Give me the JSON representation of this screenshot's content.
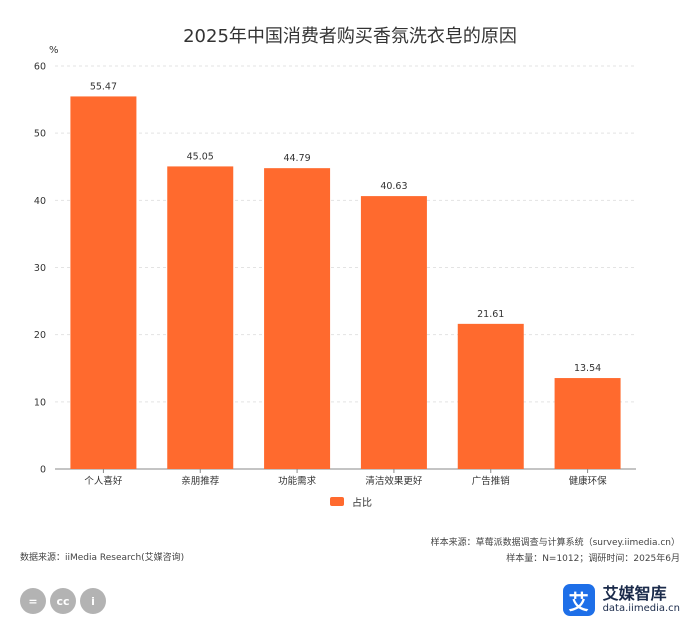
{
  "chart_data": {
    "type": "bar",
    "title": "2025年中国消费者购买香氛洗衣皂的原因",
    "ylabel": "%",
    "xlabel": "",
    "ylim": [
      0,
      60
    ],
    "yticks": [
      0,
      10,
      20,
      30,
      40,
      50,
      60
    ],
    "categories": [
      "个人喜好",
      "亲朋推荐",
      "功能需求",
      "清洁效果更好",
      "广告推销",
      "健康环保"
    ],
    "series": [
      {
        "name": "占比",
        "values": [
          55.47,
          45.05,
          44.79,
          40.63,
          21.61,
          13.54
        ]
      }
    ],
    "value_labels": [
      "55.47",
      "45.05",
      "44.79",
      "40.63",
      "21.61",
      "13.54"
    ],
    "legend_position": "bottom-center",
    "grid": true,
    "bar_color": "#ff6a2e"
  },
  "footer": {
    "sample_source": "样本来源：草莓派数据调查与计算系统（survey.iimedia.cn）",
    "sample_info": "样本量：N=1012；调研时间：2025年6月",
    "data_source": "数据来源：iiMedia Research(艾媒咨询)"
  },
  "license_icons": [
    "=",
    "cc",
    "i"
  ],
  "brand": {
    "logo_glyph": "艾",
    "name": "艾媒智库",
    "url": "data.iimedia.cn"
  }
}
